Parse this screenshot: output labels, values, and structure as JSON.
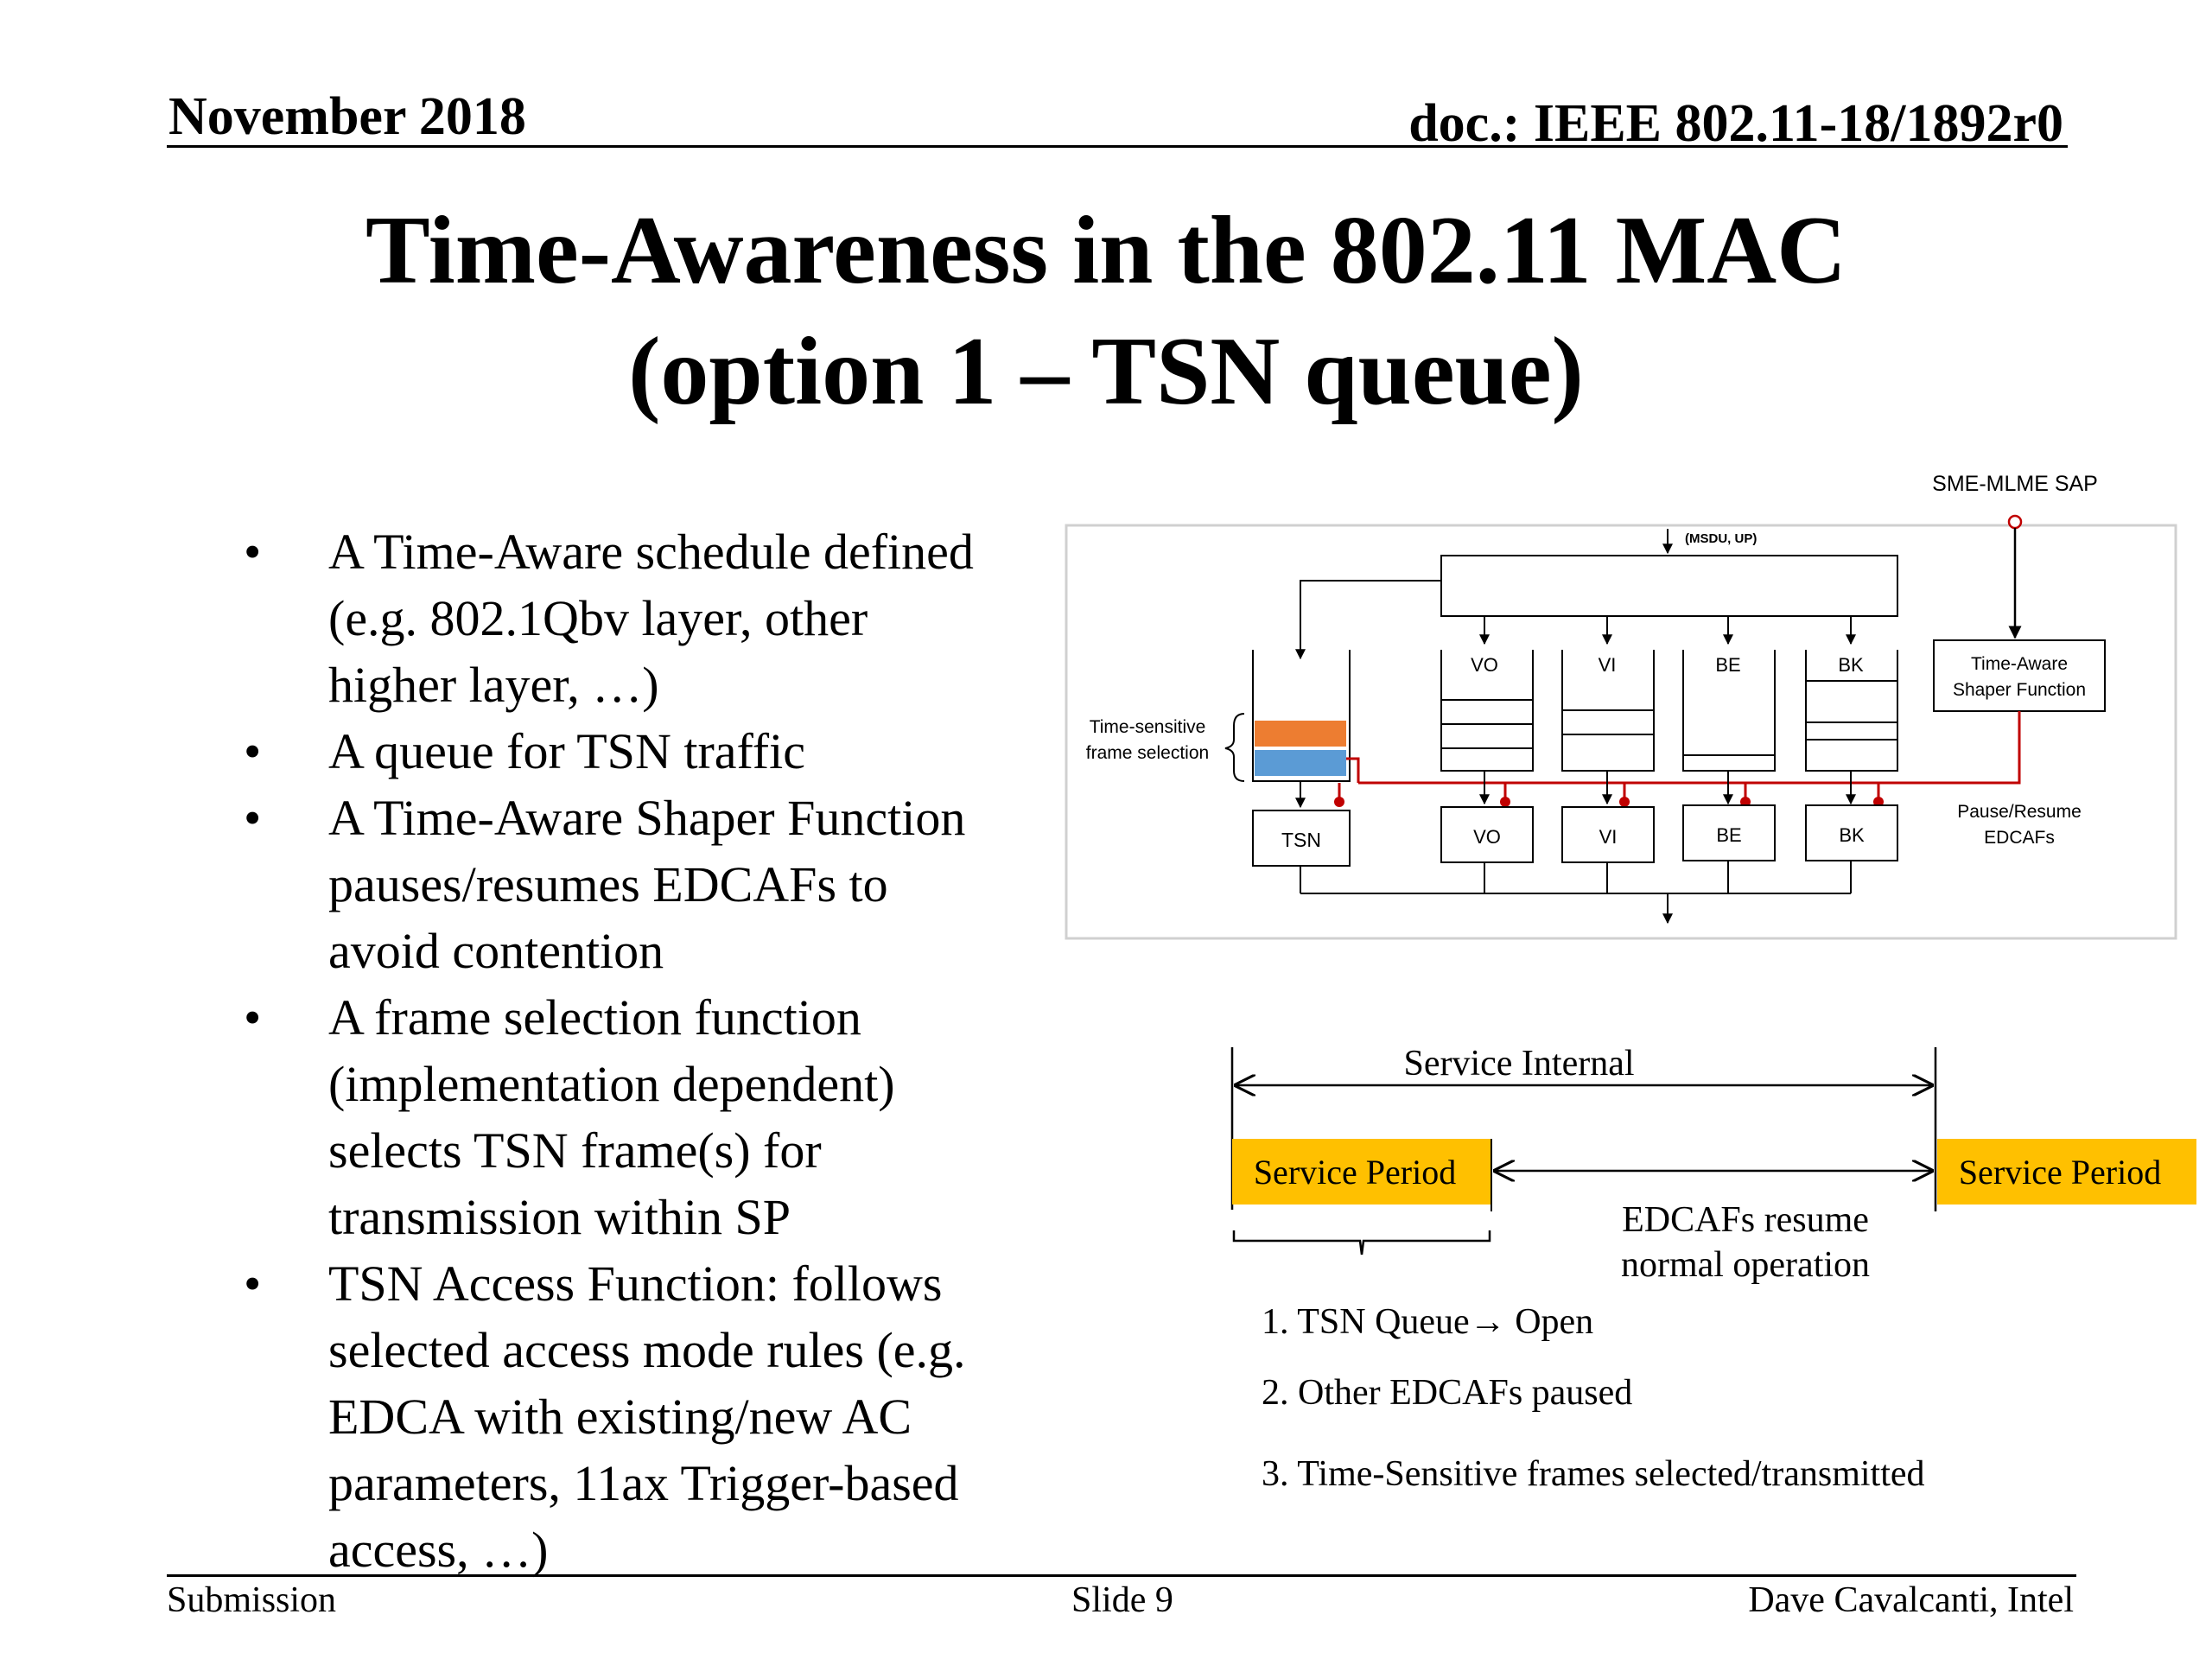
{
  "header": {
    "date": "November 2018",
    "doc": "doc.: IEEE 802.11-18/1892r0"
  },
  "title": {
    "line1": "Time-Awareness in the 802.11 MAC",
    "line2": "(option 1 – TSN queue)"
  },
  "bullets": [
    {
      "lines": [
        "A Time-Aware schedule defined",
        "(e.g. 802.1Qbv layer, other",
        "higher layer, …)"
      ]
    },
    {
      "lines": [
        "A queue for TSN traffic"
      ]
    },
    {
      "lines": [
        "A Time-Aware Shaper Function",
        "pauses/resumes EDCAFs to",
        "avoid contention"
      ]
    },
    {
      "lines": [
        "A frame selection function",
        "(implementation dependent)",
        "selects TSN frame(s) for",
        "transmission within SP"
      ]
    },
    {
      "lines": [
        "TSN Access Function: follows",
        "selected access mode rules (e.g.",
        "EDCA with existing/new AC",
        "parameters, 11ax Trigger-based",
        "access, …)"
      ]
    }
  ],
  "bullet_glyph": "•",
  "diagram": {
    "sap_label": "SME-MLME SAP",
    "msdu_label": "(MSDU, UP)",
    "queue_labels": [
      "VO",
      "VI",
      "BE",
      "BK"
    ],
    "tsn_label": "TSN",
    "edcaf_labels": [
      "VO",
      "VI",
      "BE",
      "BK"
    ],
    "shaper_line1": "Time-Aware",
    "shaper_line2": "Shaper Function",
    "selection_line1": "Time-sensitive",
    "selection_line2": "frame selection",
    "pause_line1": "Pause/Resume",
    "pause_line2": "EDCAFs",
    "colors": {
      "orange": "#ed7d31",
      "blue": "#5b9bd5",
      "red": "#c00000",
      "gold": "#ffc000"
    }
  },
  "timeline": {
    "interval_label": "Service Internal",
    "sp_left": "Service Period",
    "sp_right": "Service Period",
    "edcaf_line1": "EDCAFs resume",
    "edcaf_line2": "normal operation",
    "steps": [
      "1. TSN Queue→ Open",
      "2. Other EDCAFs paused",
      "3. Time-Sensitive frames selected/transmitted"
    ]
  },
  "footer": {
    "left": "Submission",
    "center": "Slide 9",
    "right": "Dave Cavalcanti, Intel"
  }
}
